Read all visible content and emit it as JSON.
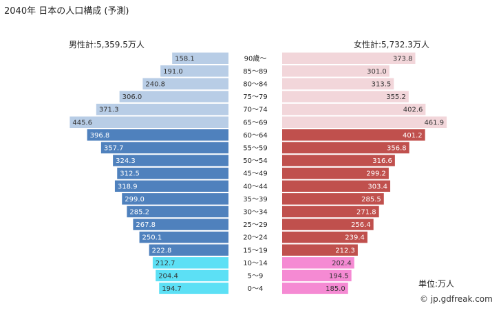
{
  "title": "2040年 日本の人口構成 (予測)",
  "male_total_label": "男性計:5,359.5万人",
  "female_total_label": "女性計:5,732.3万人",
  "unit_label": "単位:万人",
  "credit": "© jp.gdfreak.com",
  "colors": {
    "male_old": "#b8cde6",
    "male_working": "#4f81bd",
    "male_young": "#5ce0f5",
    "female_old": "#f2d6da",
    "female_working": "#c0504d",
    "female_young": "#f58ad3"
  },
  "chart_data": {
    "type": "bar",
    "orientation": "horizontal-pyramid",
    "title": "2040年 日本の人口構成 (予測)",
    "unit": "万人",
    "categories": [
      "90歳～",
      "85～89",
      "80～84",
      "75～79",
      "70～74",
      "65～69",
      "60～64",
      "55～59",
      "50～54",
      "45～49",
      "40～44",
      "35～39",
      "30～34",
      "25～29",
      "20～24",
      "15～19",
      "10～14",
      "5～9",
      "0～4"
    ],
    "groups": [
      "old",
      "old",
      "old",
      "old",
      "old",
      "old",
      "working",
      "working",
      "working",
      "working",
      "working",
      "working",
      "working",
      "working",
      "working",
      "working",
      "young",
      "young",
      "young"
    ],
    "series": [
      {
        "name": "男性",
        "values": [
          158.1,
          191.0,
          240.8,
          306.0,
          371.3,
          445.6,
          396.8,
          357.7,
          324.3,
          312.5,
          318.9,
          299.0,
          285.2,
          267.8,
          250.1,
          222.8,
          212.7,
          204.4,
          194.7
        ]
      },
      {
        "name": "女性",
        "values": [
          373.8,
          301.0,
          313.5,
          355.2,
          402.6,
          461.9,
          401.2,
          356.8,
          316.6,
          299.2,
          303.4,
          285.5,
          271.8,
          256.4,
          239.4,
          212.3,
          202.4,
          194.5,
          185.0
        ]
      }
    ]
  }
}
